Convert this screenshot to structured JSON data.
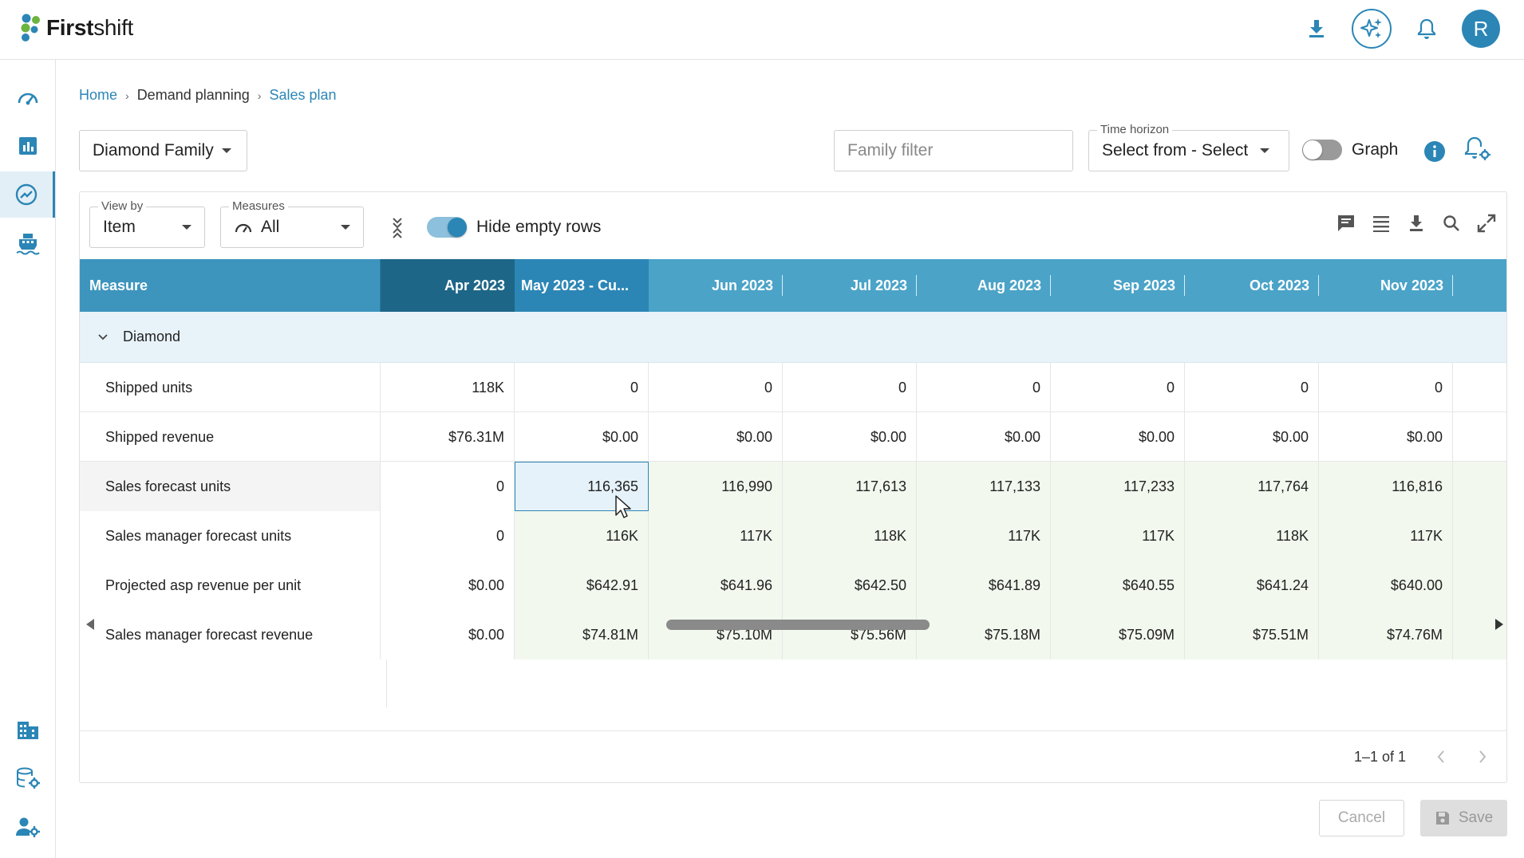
{
  "app": {
    "brand_bold": "First",
    "brand_rest": "shift"
  },
  "header": {
    "avatar_initial": "R"
  },
  "breadcrumb": {
    "home": "Home",
    "section": "Demand planning",
    "current": "Sales plan"
  },
  "filters": {
    "family": "Diamond Family",
    "family_filter_placeholder": "Family filter",
    "time_horizon_label": "Time horizon",
    "time_horizon_value": "Select from - Select to",
    "graph_label": "Graph",
    "graph_on": false
  },
  "panel": {
    "view_by_label": "View by",
    "view_by_value": "Item",
    "measures_label": "Measures",
    "measures_value": "All",
    "hide_empty_label": "Hide empty rows",
    "hide_empty_on": true
  },
  "grid": {
    "measure_header": "Measure",
    "columns": [
      "Apr 2023",
      "May 2023 - Cu...",
      "Jun 2023",
      "Jul 2023",
      "Aug 2023",
      "Sep 2023",
      "Oct 2023",
      "Nov 2023"
    ],
    "group": "Diamond",
    "rows": [
      {
        "label": "Shipped units",
        "values": [
          "118K",
          "0",
          "0",
          "0",
          "0",
          "0",
          "0",
          "0"
        ]
      },
      {
        "label": "Shipped revenue",
        "values": [
          "$76.31M",
          "$0.00",
          "$0.00",
          "$0.00",
          "$0.00",
          "$0.00",
          "$0.00",
          "$0.00"
        ]
      },
      {
        "label": "Sales forecast units",
        "values": [
          "0",
          "116,365",
          "116,990",
          "117,613",
          "117,133",
          "117,233",
          "117,764",
          "116,816"
        ]
      },
      {
        "label": "Sales manager forecast units",
        "values": [
          "0",
          "116K",
          "117K",
          "118K",
          "117K",
          "117K",
          "118K",
          "117K"
        ]
      },
      {
        "label": "Projected asp revenue per unit",
        "values": [
          "$0.00",
          "$642.91",
          "$641.96",
          "$642.50",
          "$641.89",
          "$640.55",
          "$641.24",
          "$640.00"
        ]
      },
      {
        "label": "Sales manager forecast revenue",
        "values": [
          "$0.00",
          "$74.81M",
          "$75.10M",
          "$75.56M",
          "$75.18M",
          "$75.09M",
          "$75.51M",
          "$74.76M"
        ]
      }
    ]
  },
  "pagination": {
    "text": "1–1 of 1"
  },
  "actions": {
    "cancel": "Cancel",
    "save": "Save"
  },
  "colors": {
    "accent": "#2b86b6",
    "header": "#4ba3c8",
    "header_active": "#1d6687",
    "editable_bg": "#f2f8ee"
  }
}
